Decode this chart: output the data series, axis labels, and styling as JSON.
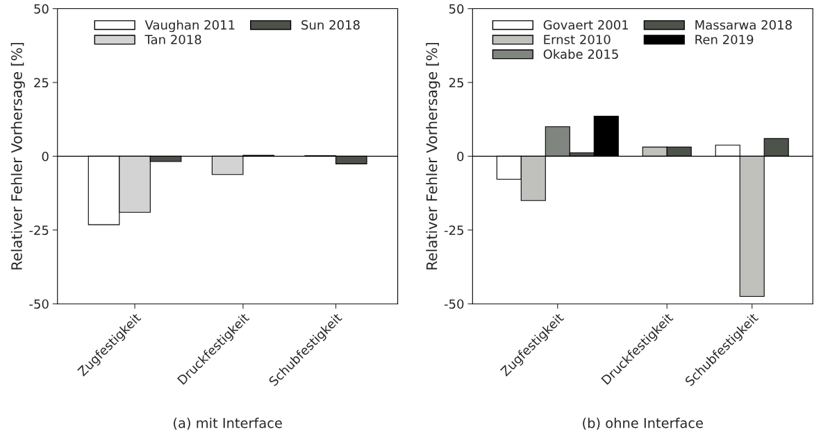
{
  "chart_data": [
    {
      "type": "bar",
      "xlabel": "(a) mit Interface",
      "ylabel": "Relativer Fehler Vorhersage [%]",
      "categories": [
        "Zugfestigkeit",
        "Druckfestigkeit",
        "Schubfestigkeit"
      ],
      "series": [
        {
          "name": "Vaughan 2011",
          "color": "#ffffff",
          "values": [
            -23.2,
            null,
            0.2
          ]
        },
        {
          "name": "Tan 2018",
          "color": "#d3d3d3",
          "values": [
            -19.0,
            -6.2,
            null
          ]
        },
        {
          "name": "Sun 2018",
          "color": "#4d514a",
          "values": [
            -1.8,
            0.3,
            -2.6
          ]
        }
      ],
      "ylim": [
        -50,
        50
      ],
      "yticks": [
        -50,
        -25,
        0,
        25,
        50
      ],
      "ref_lines": [
        {
          "axis": "y",
          "value": 0,
          "color": "#000000"
        }
      ],
      "grid": false,
      "legend": "top"
    },
    {
      "type": "bar",
      "xlabel": "(b) ohne Interface",
      "ylabel": "Relativer Fehler Vorhersage [%]",
      "categories": [
        "Zugfestigkeit",
        "Druckfestigkeit",
        "Schubfestigkeit"
      ],
      "series": [
        {
          "name": "Govaert 2001",
          "color": "#ffffff",
          "values": [
            -7.8,
            null,
            3.8
          ]
        },
        {
          "name": "Ernst 2010",
          "color": "#c0c1bd",
          "values": [
            -15.0,
            3.1,
            -47.5
          ]
        },
        {
          "name": "Okabe 2015",
          "color": "#808580",
          "values": [
            10.0,
            null,
            null
          ]
        },
        {
          "name": "Massarwa 2018",
          "color": "#4d524a",
          "values": [
            1.2,
            3.1,
            6.0
          ]
        },
        {
          "name": "Ren 2019",
          "color": "#000000",
          "values": [
            13.6,
            null,
            null
          ]
        }
      ],
      "ylim": [
        -50,
        50
      ],
      "yticks": [
        -50,
        -25,
        0,
        25,
        50
      ],
      "ref_lines": [
        {
          "axis": "y",
          "value": 0,
          "color": "#000000"
        }
      ],
      "grid": false,
      "legend": "top"
    }
  ]
}
